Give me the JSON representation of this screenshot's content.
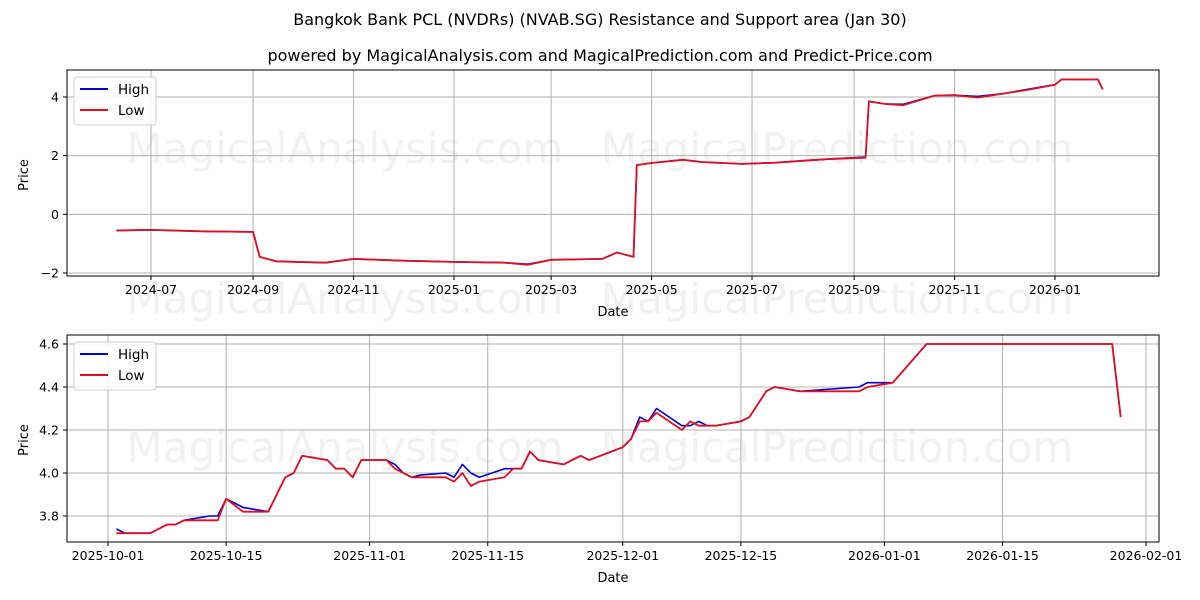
{
  "title": "Bangkok Bank PCL (NVDRs) (NVAB.SG) Resistance and Support area (Jan 30)",
  "subtitle": "powered by MagicalAnalysis.com and MagicalPrediction.com and Predict-Price.com",
  "watermarks": [
    "MagicalAnalysis.com",
    "MagicalPrediction.com"
  ],
  "colors": {
    "high": "#0000cc",
    "low": "#dd1122",
    "grid": "#b0b0b0"
  },
  "chart_data": [
    {
      "type": "line",
      "title": "Bangkok Bank PCL (NVDRs) (NVAB.SG) Resistance and Support area (Jan 30)",
      "xlabel": "Date",
      "ylabel": "Price",
      "ylim": [
        -2.1,
        4.9
      ],
      "grid": true,
      "legend_position": "upper left",
      "legend": [
        "High",
        "Low"
      ],
      "xticks": [
        "2024-07",
        "2024-09",
        "2024-11",
        "2025-01",
        "2025-03",
        "2025-05",
        "2025-07",
        "2025-09",
        "2025-11",
        "2026-01"
      ],
      "yticks": [
        -2,
        0,
        2,
        4
      ],
      "x": [
        "2024-06-10",
        "2024-07-01",
        "2024-08-01",
        "2024-09-01",
        "2024-09-05",
        "2024-09-15",
        "2024-10-15",
        "2024-11-01",
        "2024-12-01",
        "2025-01-01",
        "2025-02-01",
        "2025-02-15",
        "2025-03-01",
        "2025-04-01",
        "2025-04-10",
        "2025-04-20",
        "2025-04-22",
        "2025-05-01",
        "2025-05-20",
        "2025-06-01",
        "2025-06-25",
        "2025-07-15",
        "2025-08-15",
        "2025-09-08",
        "2025-09-10",
        "2025-09-20",
        "2025-10-01",
        "2025-10-20",
        "2025-11-01",
        "2025-11-15",
        "2025-12-01",
        "2025-12-15",
        "2026-01-01",
        "2026-01-05",
        "2026-01-27",
        "2026-01-30"
      ],
      "series": [
        {
          "name": "High",
          "values": [
            -0.55,
            -0.53,
            -0.58,
            -0.6,
            -1.45,
            -1.6,
            -1.65,
            -1.52,
            -1.58,
            -1.62,
            -1.65,
            -1.7,
            -1.55,
            -1.52,
            -1.3,
            -1.45,
            1.68,
            1.75,
            1.86,
            1.78,
            1.72,
            1.76,
            1.88,
            1.95,
            3.85,
            3.76,
            3.75,
            4.05,
            4.06,
            4.02,
            4.12,
            4.26,
            4.42,
            4.6,
            4.6,
            4.26
          ]
        },
        {
          "name": "Low",
          "values": [
            -0.55,
            -0.53,
            -0.58,
            -0.6,
            -1.45,
            -1.6,
            -1.65,
            -1.52,
            -1.58,
            -1.62,
            -1.65,
            -1.72,
            -1.55,
            -1.52,
            -1.3,
            -1.45,
            1.68,
            1.75,
            1.86,
            1.78,
            1.72,
            1.76,
            1.88,
            1.93,
            3.85,
            3.76,
            3.72,
            4.05,
            4.06,
            3.98,
            4.12,
            4.24,
            4.42,
            4.6,
            4.6,
            4.26
          ]
        }
      ]
    },
    {
      "type": "line",
      "xlabel": "Date",
      "ylabel": "Price",
      "ylim": [
        3.67,
        4.65
      ],
      "grid": true,
      "legend_position": "upper left",
      "legend": [
        "High",
        "Low"
      ],
      "xticks": [
        "2025-10-01",
        "2025-10-15",
        "2025-11-01",
        "2025-11-15",
        "2025-12-01",
        "2025-12-15",
        "2026-01-01",
        "2026-01-15",
        "2026-02-01"
      ],
      "yticks": [
        3.8,
        4.0,
        4.2,
        4.4,
        4.6
      ],
      "x": [
        "2025-10-02",
        "2025-10-03",
        "2025-10-06",
        "2025-10-08",
        "2025-10-09",
        "2025-10-10",
        "2025-10-13",
        "2025-10-14",
        "2025-10-15",
        "2025-10-17",
        "2025-10-20",
        "2025-10-22",
        "2025-10-23",
        "2025-10-24",
        "2025-10-27",
        "2025-10-28",
        "2025-10-29",
        "2025-10-30",
        "2025-10-31",
        "2025-11-03",
        "2025-11-04",
        "2025-11-05",
        "2025-11-06",
        "2025-11-07",
        "2025-11-10",
        "2025-11-11",
        "2025-11-12",
        "2025-11-13",
        "2025-11-14",
        "2025-11-17",
        "2025-11-18",
        "2025-11-19",
        "2025-11-20",
        "2025-11-21",
        "2025-11-24",
        "2025-11-25",
        "2025-11-26",
        "2025-11-27",
        "2025-12-01",
        "2025-12-02",
        "2025-12-03",
        "2025-12-04",
        "2025-12-05",
        "2025-12-08",
        "2025-12-09",
        "2025-12-10",
        "2025-12-11",
        "2025-12-12",
        "2025-12-15",
        "2025-12-16",
        "2025-12-18",
        "2025-12-19",
        "2025-12-22",
        "2025-12-29",
        "2025-12-30",
        "2026-01-02",
        "2026-01-06",
        "2026-01-28",
        "2026-01-29"
      ],
      "series": [
        {
          "name": "High",
          "values": [
            3.74,
            3.72,
            3.72,
            3.76,
            3.76,
            3.78,
            3.8,
            3.8,
            3.88,
            3.84,
            3.82,
            3.98,
            4.0,
            4.08,
            4.06,
            4.02,
            4.02,
            3.98,
            4.06,
            4.06,
            4.04,
            4.0,
            3.98,
            3.99,
            4.0,
            3.98,
            4.04,
            4.0,
            3.98,
            4.02,
            4.02,
            4.02,
            4.1,
            4.06,
            4.04,
            4.06,
            4.08,
            4.06,
            4.12,
            4.16,
            4.26,
            4.24,
            4.3,
            4.22,
            4.22,
            4.24,
            4.22,
            4.22,
            4.24,
            4.26,
            4.38,
            4.4,
            4.38,
            4.4,
            4.42,
            4.42,
            4.6,
            4.6,
            4.26
          ]
        },
        {
          "name": "Low",
          "values": [
            3.72,
            3.72,
            3.72,
            3.76,
            3.76,
            3.78,
            3.78,
            3.78,
            3.88,
            3.82,
            3.82,
            3.98,
            4.0,
            4.08,
            4.06,
            4.02,
            4.02,
            3.98,
            4.06,
            4.06,
            4.02,
            4.0,
            3.98,
            3.98,
            3.98,
            3.96,
            4.0,
            3.94,
            3.96,
            3.98,
            4.02,
            4.02,
            4.1,
            4.06,
            4.04,
            4.06,
            4.08,
            4.06,
            4.12,
            4.16,
            4.24,
            4.24,
            4.28,
            4.2,
            4.24,
            4.22,
            4.22,
            4.22,
            4.24,
            4.26,
            4.38,
            4.4,
            4.38,
            4.38,
            4.4,
            4.42,
            4.6,
            4.6,
            4.26
          ]
        }
      ]
    }
  ]
}
